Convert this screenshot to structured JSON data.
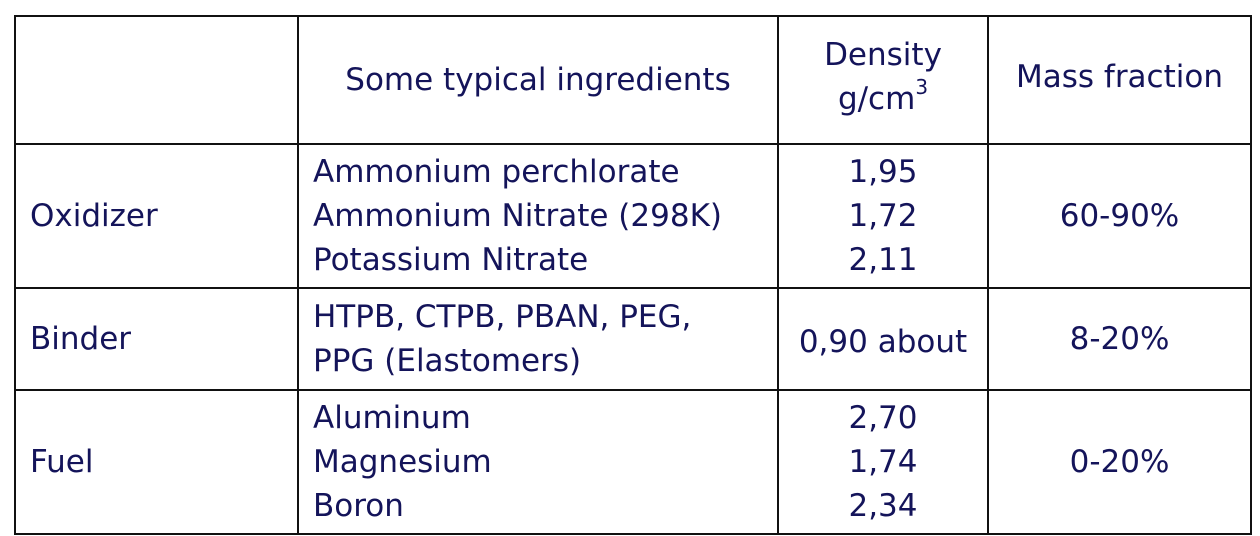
{
  "table": {
    "header": {
      "category": "",
      "ingredients": "Some typical ingredients",
      "density_line1": "Density",
      "density_line2": "g/cm",
      "density_exp": "3",
      "mass_fraction": "Mass fraction"
    },
    "rows": [
      {
        "category": "Oxidizer",
        "ingredients": [
          "Ammonium perchlorate",
          "Ammonium Nitrate (298K)",
          "Potassium Nitrate"
        ],
        "densities": [
          "1,95",
          "1,72",
          "2,11"
        ],
        "mass_fraction": "60-90%"
      },
      {
        "category": "Binder",
        "ingredients": [
          "HTPB, CTPB, PBAN, PEG,",
          "PPG (Elastomers)"
        ],
        "densities": [
          "0,90 about"
        ],
        "mass_fraction": "8-20%"
      },
      {
        "category": "Fuel",
        "ingredients": [
          "Aluminum",
          "Magnesium",
          "Boron"
        ],
        "densities": [
          "2,70",
          "1,74",
          "2,34"
        ],
        "mass_fraction": "0-20%"
      }
    ]
  }
}
